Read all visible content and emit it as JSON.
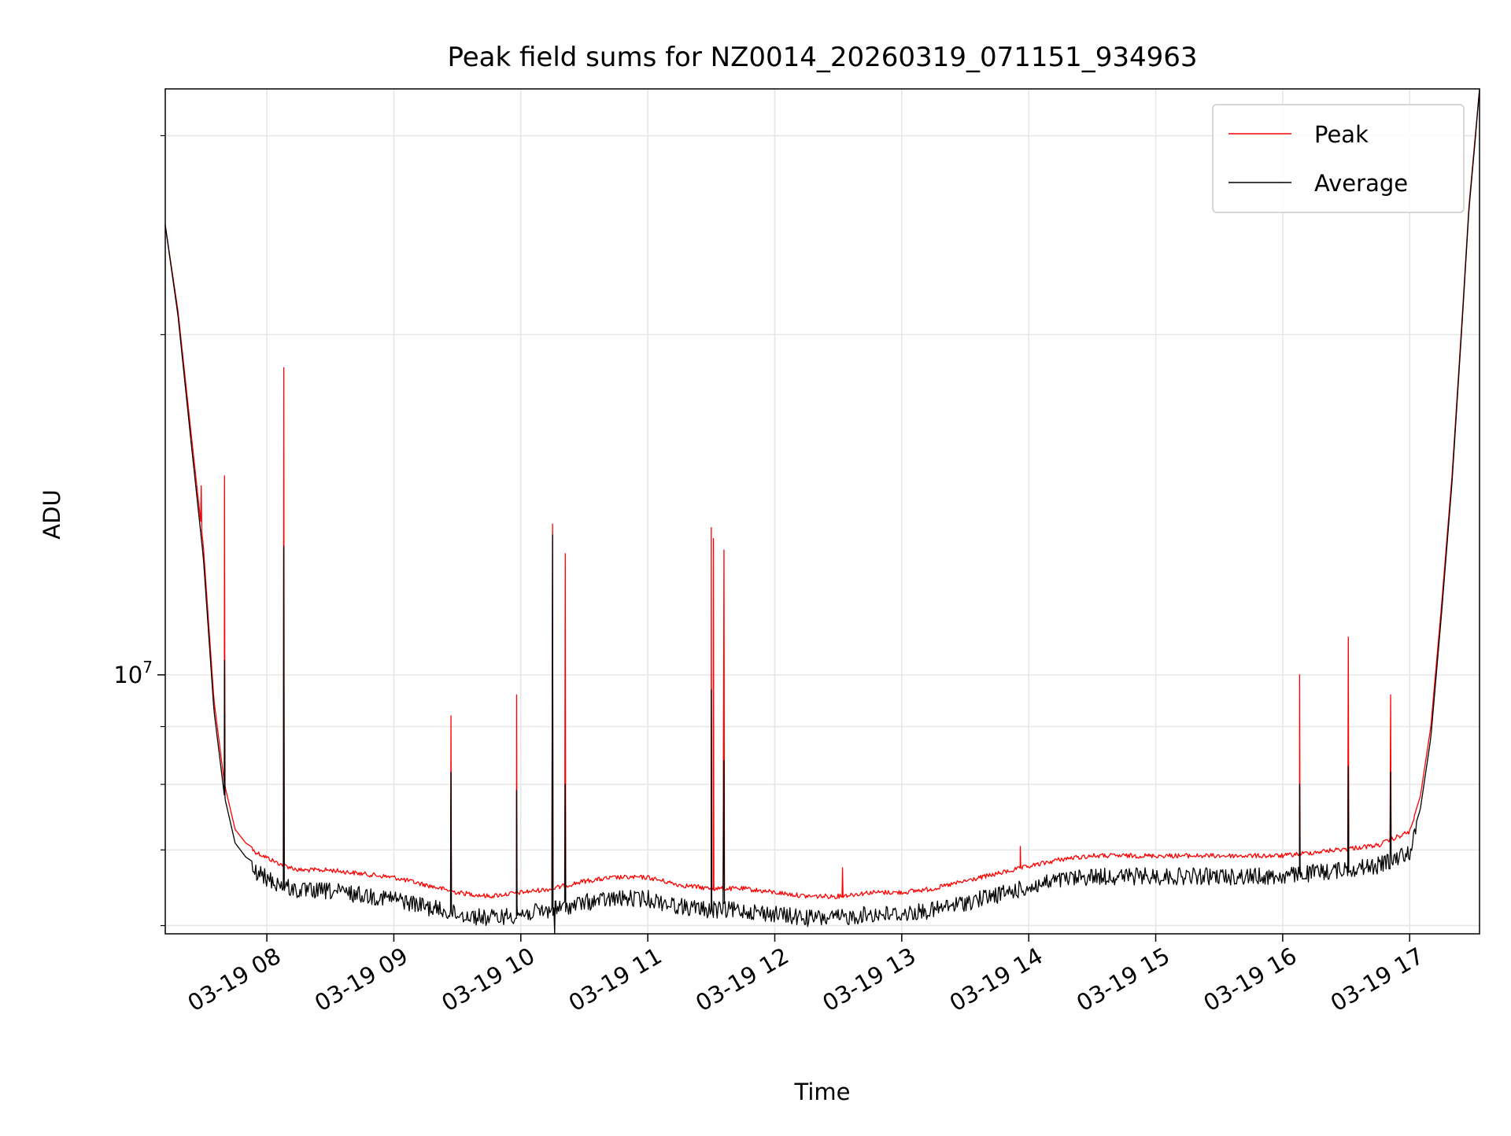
{
  "chart_data": {
    "type": "line",
    "title": "Peak field sums for NZ0014_20260319_071151_934963",
    "xlabel": "Time",
    "ylabel": "ADU",
    "y_scale": "log",
    "ylim": [
      5900000,
      33000000
    ],
    "x_format": "MM-DD HH",
    "xlim": [
      "2026-03-19 07:12",
      "2026-03-19 17:33"
    ],
    "x_ticks": [
      "2026-03-19 08:00",
      "2026-03-19 09:00",
      "2026-03-19 10:00",
      "2026-03-19 11:00",
      "2026-03-19 12:00",
      "2026-03-19 13:00",
      "2026-03-19 14:00",
      "2026-03-19 15:00",
      "2026-03-19 16:00",
      "2026-03-19 17:00"
    ],
    "x_tick_labels": [
      "03-19 08",
      "03-19 09",
      "03-19 10",
      "03-19 11",
      "03-19 12",
      "03-19 13",
      "03-19 14",
      "03-19 15",
      "03-19 16",
      "03-19 17"
    ],
    "y_major_ticks": [
      10000000
    ],
    "y_major_tick_labels": [
      {
        "base": "10",
        "exp": "7"
      }
    ],
    "y_minor_ticks": [
      6000000,
      7000000,
      8000000,
      9000000,
      20000000,
      30000000
    ],
    "grid": true,
    "legend": "upper right",
    "series": [
      {
        "name": "Peak",
        "color": "#ff0000",
        "x": [
          "2026-03-19 07:12",
          "2026-03-19 07:18",
          "2026-03-19 07:24",
          "2026-03-19 07:30",
          "2026-03-19 07:35",
          "2026-03-19 07:40",
          "2026-03-19 07:45",
          "2026-03-19 07:50",
          "2026-03-19 07:55",
          "2026-03-19 08:05",
          "2026-03-19 08:15",
          "2026-03-19 08:30",
          "2026-03-19 08:45",
          "2026-03-19 09:00",
          "2026-03-19 09:15",
          "2026-03-19 09:30",
          "2026-03-19 09:45",
          "2026-03-19 10:00",
          "2026-03-19 10:15",
          "2026-03-19 10:30",
          "2026-03-19 10:45",
          "2026-03-19 11:00",
          "2026-03-19 11:15",
          "2026-03-19 11:30",
          "2026-03-19 11:45",
          "2026-03-19 12:00",
          "2026-03-19 12:15",
          "2026-03-19 12:30",
          "2026-03-19 12:45",
          "2026-03-19 13:00",
          "2026-03-19 13:15",
          "2026-03-19 13:30",
          "2026-03-19 13:45",
          "2026-03-19 14:00",
          "2026-03-19 14:15",
          "2026-03-19 14:30",
          "2026-03-19 14:45",
          "2026-03-19 15:00",
          "2026-03-19 15:15",
          "2026-03-19 15:30",
          "2026-03-19 15:45",
          "2026-03-19 16:00",
          "2026-03-19 16:15",
          "2026-03-19 16:30",
          "2026-03-19 16:45",
          "2026-03-19 17:00",
          "2026-03-19 17:05",
          "2026-03-19 17:10",
          "2026-03-19 17:15",
          "2026-03-19 17:20",
          "2026-03-19 17:25",
          "2026-03-19 17:28",
          "2026-03-19 17:31",
          "2026-03-19 17:33"
        ],
        "values": [
          25000000,
          21000000,
          16500000,
          13000000,
          9500000,
          8000000,
          7300000,
          7100000,
          7000000,
          6850000,
          6750000,
          6750000,
          6700000,
          6650000,
          6550000,
          6450000,
          6400000,
          6450000,
          6500000,
          6600000,
          6650000,
          6650000,
          6550000,
          6500000,
          6500000,
          6450000,
          6400000,
          6400000,
          6450000,
          6450000,
          6500000,
          6600000,
          6700000,
          6800000,
          6900000,
          6950000,
          6950000,
          6950000,
          6950000,
          6950000,
          6950000,
          6950000,
          7000000,
          7050000,
          7100000,
          7300000,
          7800000,
          9000000,
          11500000,
          15000000,
          21000000,
          26000000,
          30000000,
          33000000
        ],
        "spikes": [
          {
            "x": "2026-03-19 07:29",
            "value": 14700000
          },
          {
            "x": "2026-03-19 07:40",
            "value": 15000000
          },
          {
            "x": "2026-03-19 08:08",
            "value": 18700000
          },
          {
            "x": "2026-03-19 09:27",
            "value": 9200000
          },
          {
            "x": "2026-03-19 09:58",
            "value": 9600000
          },
          {
            "x": "2026-03-19 10:15",
            "value": 13600000
          },
          {
            "x": "2026-03-19 10:21",
            "value": 12800000
          },
          {
            "x": "2026-03-19 11:30",
            "value": 13500000
          },
          {
            "x": "2026-03-19 11:31",
            "value": 13200000
          },
          {
            "x": "2026-03-19 11:36",
            "value": 12900000
          },
          {
            "x": "2026-03-19 12:32",
            "value": 6750000
          },
          {
            "x": "2026-03-19 13:56",
            "value": 7050000
          },
          {
            "x": "2026-03-19 16:08",
            "value": 10000000
          },
          {
            "x": "2026-03-19 16:31",
            "value": 10800000
          },
          {
            "x": "2026-03-19 16:51",
            "value": 9600000
          }
        ]
      },
      {
        "name": "Average",
        "color": "#000000",
        "x": [
          "2026-03-19 07:12",
          "2026-03-19 07:18",
          "2026-03-19 07:24",
          "2026-03-19 07:30",
          "2026-03-19 07:35",
          "2026-03-19 07:40",
          "2026-03-19 07:45",
          "2026-03-19 07:50",
          "2026-03-19 07:55",
          "2026-03-19 08:05",
          "2026-03-19 08:15",
          "2026-03-19 08:30",
          "2026-03-19 08:45",
          "2026-03-19 09:00",
          "2026-03-19 09:15",
          "2026-03-19 09:30",
          "2026-03-19 09:45",
          "2026-03-19 10:00",
          "2026-03-19 10:15",
          "2026-03-19 10:30",
          "2026-03-19 10:45",
          "2026-03-19 11:00",
          "2026-03-19 11:15",
          "2026-03-19 11:30",
          "2026-03-19 11:45",
          "2026-03-19 12:00",
          "2026-03-19 12:15",
          "2026-03-19 12:30",
          "2026-03-19 12:45",
          "2026-03-19 13:00",
          "2026-03-19 13:15",
          "2026-03-19 13:30",
          "2026-03-19 13:45",
          "2026-03-19 14:00",
          "2026-03-19 14:15",
          "2026-03-19 14:30",
          "2026-03-19 14:45",
          "2026-03-19 15:00",
          "2026-03-19 15:15",
          "2026-03-19 15:30",
          "2026-03-19 15:45",
          "2026-03-19 16:00",
          "2026-03-19 16:15",
          "2026-03-19 16:30",
          "2026-03-19 16:45",
          "2026-03-19 17:00",
          "2026-03-19 17:05",
          "2026-03-19 17:10",
          "2026-03-19 17:15",
          "2026-03-19 17:20",
          "2026-03-19 17:25",
          "2026-03-19 17:28",
          "2026-03-19 17:31",
          "2026-03-19 17:33"
        ],
        "values": [
          25000000,
          20800000,
          16200000,
          12700000,
          9300000,
          7800000,
          7100000,
          6900000,
          6800000,
          6650000,
          6550000,
          6550000,
          6500000,
          6450000,
          6350000,
          6250000,
          6200000,
          6250000,
          6300000,
          6400000,
          6450000,
          6450000,
          6350000,
          6300000,
          6300000,
          6250000,
          6200000,
          6200000,
          6250000,
          6250000,
          6300000,
          6400000,
          6500000,
          6600000,
          6700000,
          6750000,
          6750000,
          6750000,
          6750000,
          6750000,
          6750000,
          6750000,
          6800000,
          6850000,
          6900000,
          7100000,
          7600000,
          8800000,
          11300000,
          14800000,
          20800000,
          25800000,
          29800000,
          33000000
        ],
        "spikes": [
          {
            "x": "2026-03-19 07:40",
            "value": 10300000
          },
          {
            "x": "2026-03-19 08:08",
            "value": 13000000
          },
          {
            "x": "2026-03-19 09:27",
            "value": 8200000
          },
          {
            "x": "2026-03-19 09:58",
            "value": 7900000
          },
          {
            "x": "2026-03-19 10:15",
            "value": 13300000
          },
          {
            "x": "2026-03-19 10:16",
            "value": 5900000
          },
          {
            "x": "2026-03-19 10:21",
            "value": 8000000
          },
          {
            "x": "2026-03-19 11:30",
            "value": 9700000
          },
          {
            "x": "2026-03-19 11:31",
            "value": 6100000
          },
          {
            "x": "2026-03-19 11:36",
            "value": 8400000
          },
          {
            "x": "2026-03-19 16:08",
            "value": 8000000
          },
          {
            "x": "2026-03-19 16:31",
            "value": 8300000
          },
          {
            "x": "2026-03-19 16:51",
            "value": 8200000
          }
        ]
      }
    ]
  }
}
